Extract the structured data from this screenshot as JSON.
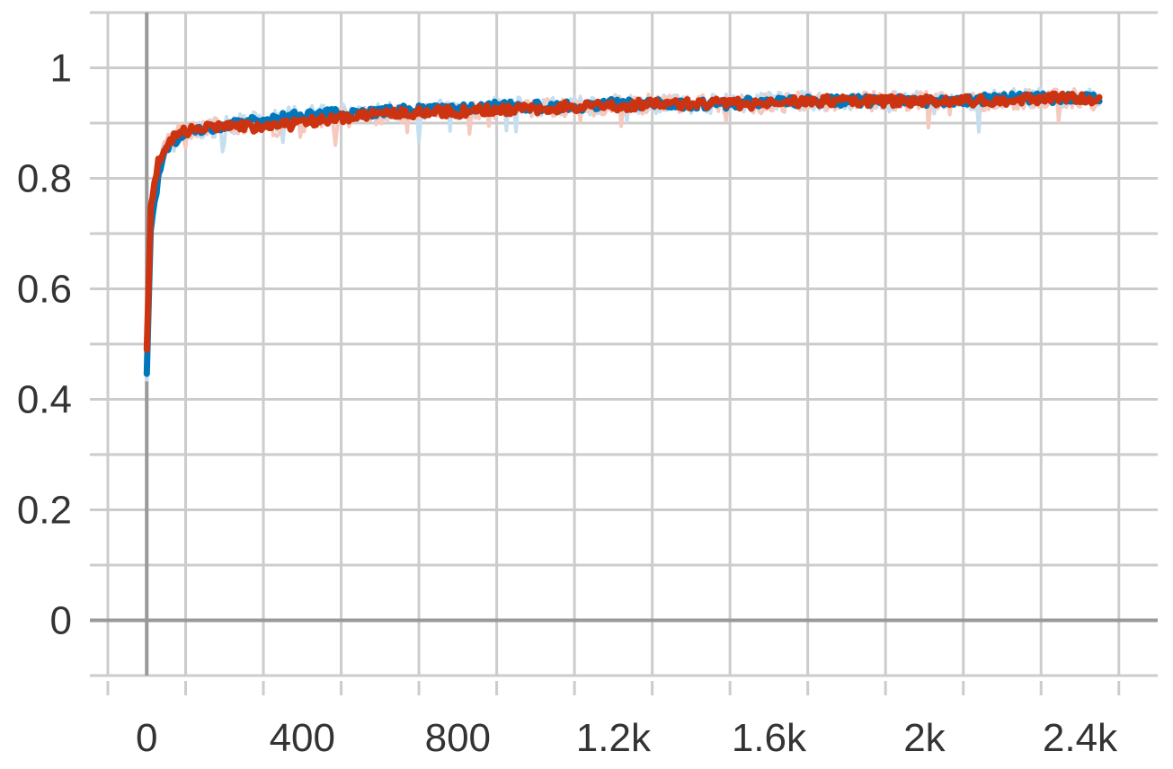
{
  "chart_data": {
    "type": "line",
    "title": "",
    "xlabel": "",
    "ylabel": "",
    "xlim": [
      -100,
      2600
    ],
    "ylim": [
      -0.1,
      1.1
    ],
    "grid": true,
    "legend": "none",
    "x_ticks": [
      {
        "value": 0,
        "label": "0"
      },
      {
        "value": 400,
        "label": "400"
      },
      {
        "value": 800,
        "label": "800"
      },
      {
        "value": 1200,
        "label": "1.2k"
      },
      {
        "value": 1600,
        "label": "1.6k"
      },
      {
        "value": 2000,
        "label": "2k"
      },
      {
        "value": 2400,
        "label": "2.4k"
      }
    ],
    "y_ticks": [
      {
        "value": 0,
        "label": "0"
      },
      {
        "value": 0.2,
        "label": "0.2"
      },
      {
        "value": 0.4,
        "label": "0.4"
      },
      {
        "value": 0.6,
        "label": "0.6"
      },
      {
        "value": 0.8,
        "label": "0.8"
      },
      {
        "value": 1,
        "label": "1"
      }
    ],
    "x": [
      0,
      10,
      20,
      30,
      40,
      50,
      60,
      80,
      100,
      120,
      150,
      200,
      250,
      300,
      350,
      400,
      450,
      500,
      600,
      700,
      800,
      900,
      1000,
      1100,
      1200,
      1300,
      1400,
      1500,
      1600,
      1700,
      1800,
      1900,
      2000,
      2100,
      2200,
      2300,
      2400,
      2450
    ],
    "series": [
      {
        "color": "#0077bb",
        "raw_color": "#c6dff0",
        "values": [
          0.45,
          0.7,
          0.76,
          0.8,
          0.83,
          0.85,
          0.86,
          0.87,
          0.88,
          0.885,
          0.89,
          0.895,
          0.9,
          0.905,
          0.91,
          0.915,
          0.915,
          0.92,
          0.92,
          0.925,
          0.925,
          0.93,
          0.93,
          0.93,
          0.935,
          0.935,
          0.935,
          0.935,
          0.94,
          0.94,
          0.94,
          0.94,
          0.94,
          0.94,
          0.945,
          0.945,
          0.945,
          0.945
        ]
      },
      {
        "color": "#cc3311",
        "raw_color": "#f5c9bd",
        "values": [
          0.49,
          0.74,
          0.79,
          0.83,
          0.85,
          0.86,
          0.87,
          0.88,
          0.885,
          0.89,
          0.89,
          0.895,
          0.895,
          0.89,
          0.895,
          0.9,
          0.905,
          0.91,
          0.915,
          0.92,
          0.92,
          0.925,
          0.925,
          0.93,
          0.93,
          0.935,
          0.935,
          0.935,
          0.935,
          0.94,
          0.94,
          0.94,
          0.94,
          0.94,
          0.94,
          0.945,
          0.945,
          0.94
        ]
      }
    ]
  }
}
